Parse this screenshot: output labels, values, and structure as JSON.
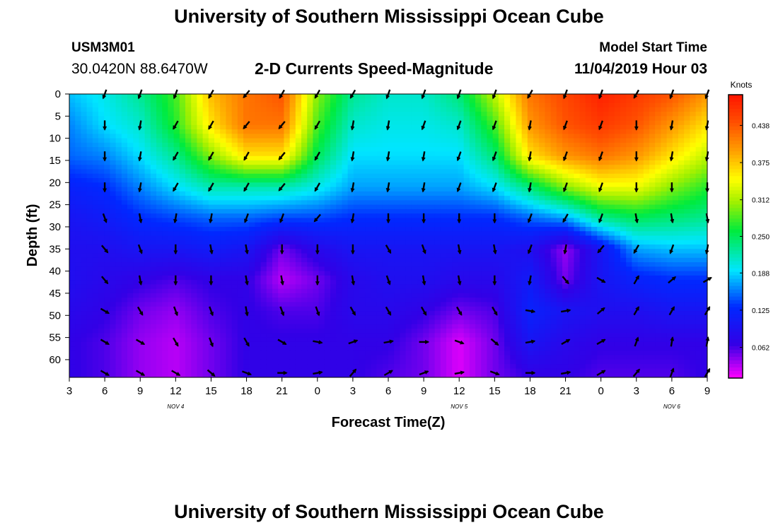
{
  "header": {
    "title": "University of Southern Mississippi Ocean Cube",
    "station_id": "USM3M01",
    "station_coords": "30.0420N 88.6470W",
    "plot_title": "2-D Currents Speed-Magnitude",
    "model_label": "Model Start Time",
    "model_time": "11/04/2019 Hour 03"
  },
  "footer": {
    "title": "University of Southern Mississippi Ocean Cube"
  },
  "chart_data": {
    "type": "heatmap",
    "title": "2-D Currents Speed-Magnitude",
    "xlabel": "Forecast Time(Z)",
    "ylabel": "Depth (ft)",
    "x_start_hour": 3,
    "x_end_hour": 57,
    "x_ticks": [
      "3",
      "6",
      "9",
      "12",
      "15",
      "18",
      "21",
      "0",
      "3",
      "6",
      "9",
      "12",
      "15",
      "18",
      "21",
      "0",
      "3",
      "6",
      "9"
    ],
    "x_day_labels": [
      {
        "label": "NOV 4",
        "hour": 12
      },
      {
        "label": "NOV 5",
        "hour": 36
      },
      {
        "label": "NOV 6",
        "hour": 54
      }
    ],
    "y_ticks": [
      0,
      5,
      10,
      15,
      20,
      25,
      30,
      35,
      40,
      45,
      50,
      55,
      60
    ],
    "ylim": [
      0,
      64
    ],
    "y_inverted": true,
    "colorbar": {
      "title": "Knots",
      "ticks": [
        "0.062",
        "0.125",
        "0.188",
        "0.250",
        "0.312",
        "0.375",
        "0.438"
      ],
      "range": [
        0.01,
        0.49
      ]
    },
    "arrow_hours": [
      6,
      9,
      12,
      15,
      18,
      21,
      24,
      27,
      30,
      33,
      36,
      39,
      42,
      45,
      48,
      51,
      54,
      57
    ],
    "arrow_depths": [
      0,
      7,
      14,
      21,
      28,
      35,
      42,
      49,
      56,
      63
    ],
    "speed_grid": {
      "hours": [
        3,
        6,
        9,
        12,
        15,
        18,
        21,
        24,
        27,
        30,
        33,
        36,
        39,
        42,
        45,
        48,
        51,
        54,
        57
      ],
      "depths": [
        0,
        7,
        14,
        21,
        28,
        35,
        42,
        49,
        56,
        63
      ],
      "values": [
        [
          0.18,
          0.2,
          0.23,
          0.28,
          0.38,
          0.42,
          0.44,
          0.3,
          0.23,
          0.21,
          0.21,
          0.24,
          0.32,
          0.42,
          0.45,
          0.48,
          0.46,
          0.44,
          0.4
        ],
        [
          0.16,
          0.19,
          0.21,
          0.27,
          0.36,
          0.42,
          0.42,
          0.28,
          0.21,
          0.2,
          0.2,
          0.21,
          0.28,
          0.4,
          0.44,
          0.46,
          0.44,
          0.4,
          0.36
        ],
        [
          0.15,
          0.16,
          0.19,
          0.23,
          0.3,
          0.36,
          0.36,
          0.25,
          0.19,
          0.19,
          0.19,
          0.19,
          0.24,
          0.36,
          0.4,
          0.42,
          0.4,
          0.36,
          0.32
        ],
        [
          0.12,
          0.13,
          0.16,
          0.19,
          0.22,
          0.22,
          0.22,
          0.2,
          0.17,
          0.17,
          0.17,
          0.17,
          0.19,
          0.24,
          0.3,
          0.34,
          0.34,
          0.3,
          0.27
        ],
        [
          0.1,
          0.11,
          0.13,
          0.14,
          0.15,
          0.15,
          0.14,
          0.14,
          0.13,
          0.13,
          0.13,
          0.13,
          0.13,
          0.15,
          0.17,
          0.23,
          0.25,
          0.24,
          0.23
        ],
        [
          0.09,
          0.09,
          0.1,
          0.1,
          0.11,
          0.1,
          0.05,
          0.08,
          0.1,
          0.1,
          0.1,
          0.1,
          0.1,
          0.09,
          0.04,
          0.1,
          0.17,
          0.18,
          0.18
        ],
        [
          0.09,
          0.08,
          0.07,
          0.06,
          0.07,
          0.07,
          0.03,
          0.05,
          0.08,
          0.09,
          0.09,
          0.08,
          0.08,
          0.11,
          0.05,
          0.1,
          0.12,
          0.13,
          0.13
        ],
        [
          0.08,
          0.07,
          0.05,
          0.04,
          0.06,
          0.07,
          0.06,
          0.06,
          0.08,
          0.08,
          0.07,
          0.05,
          0.06,
          0.12,
          0.1,
          0.09,
          0.09,
          0.1,
          0.1
        ],
        [
          0.07,
          0.06,
          0.04,
          0.03,
          0.05,
          0.07,
          0.07,
          0.07,
          0.07,
          0.07,
          0.05,
          0.02,
          0.05,
          0.1,
          0.08,
          0.07,
          0.07,
          0.07,
          0.07
        ],
        [
          0.07,
          0.06,
          0.04,
          0.03,
          0.05,
          0.07,
          0.07,
          0.07,
          0.07,
          0.06,
          0.05,
          0.02,
          0.05,
          0.07,
          0.07,
          0.06,
          0.06,
          0.06,
          0.07
        ]
      ]
    },
    "arrow_directions_deg": [
      [
        200,
        200,
        200,
        210,
        220,
        210,
        210,
        210,
        200,
        200,
        200,
        200,
        210,
        200,
        200,
        210,
        200,
        200
      ],
      [
        180,
        190,
        210,
        210,
        220,
        220,
        210,
        190,
        190,
        200,
        200,
        200,
        190,
        200,
        200,
        180,
        190,
        190
      ],
      [
        180,
        190,
        210,
        210,
        210,
        220,
        210,
        190,
        190,
        190,
        200,
        200,
        190,
        200,
        200,
        180,
        190,
        190
      ],
      [
        180,
        190,
        210,
        210,
        210,
        220,
        210,
        190,
        190,
        190,
        200,
        200,
        190,
        200,
        200,
        180,
        180,
        180
      ],
      [
        160,
        170,
        190,
        190,
        200,
        200,
        220,
        190,
        180,
        180,
        180,
        180,
        200,
        210,
        200,
        170,
        170,
        170
      ],
      [
        140,
        160,
        180,
        170,
        170,
        180,
        180,
        180,
        150,
        160,
        170,
        170,
        200,
        190,
        220,
        210,
        200,
        190
      ],
      [
        140,
        170,
        180,
        180,
        170,
        170,
        180,
        170,
        160,
        170,
        170,
        180,
        190,
        140,
        120,
        30,
        50,
        60
      ],
      [
        120,
        150,
        160,
        160,
        170,
        160,
        160,
        150,
        150,
        150,
        150,
        150,
        100,
        80,
        50,
        30,
        30,
        30
      ],
      [
        120,
        120,
        150,
        160,
        150,
        120,
        100,
        70,
        80,
        90,
        110,
        130,
        80,
        60,
        60,
        20,
        10,
        10
      ],
      [
        120,
        120,
        120,
        130,
        110,
        90,
        80,
        40,
        60,
        70,
        80,
        110,
        90,
        80,
        60,
        40,
        20,
        30
      ]
    ]
  }
}
